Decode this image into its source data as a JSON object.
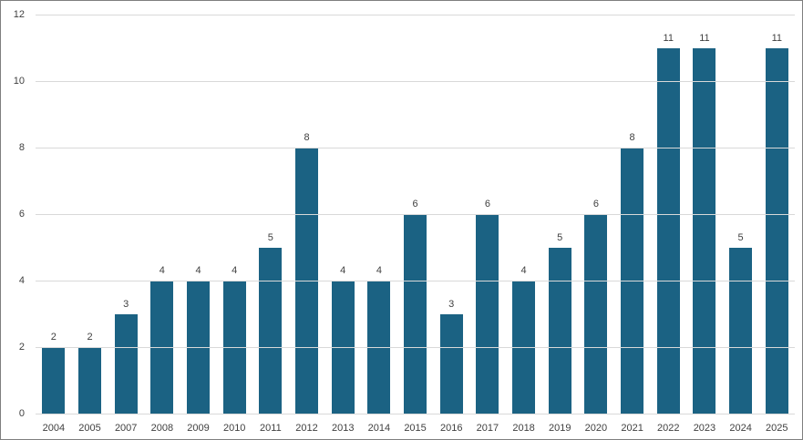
{
  "chart_data": {
    "type": "bar",
    "categories": [
      "2004",
      "2005",
      "2007",
      "2008",
      "2009",
      "2010",
      "2011",
      "2012",
      "2013",
      "2014",
      "2015",
      "2016",
      "2017",
      "2018",
      "2019",
      "2020",
      "2021",
      "2022",
      "2023",
      "2024",
      "2025"
    ],
    "values": [
      2,
      2,
      3,
      4,
      4,
      4,
      5,
      8,
      4,
      4,
      6,
      3,
      6,
      4,
      5,
      6,
      8,
      11,
      11,
      5,
      11
    ],
    "title": "",
    "xlabel": "",
    "ylabel": "",
    "ylim": [
      0,
      12
    ],
    "yticks": [
      0,
      2,
      4,
      6,
      8,
      10,
      12
    ],
    "grid": true,
    "legend": false,
    "data_labels": true,
    "colors": {
      "bar": "#1b6283",
      "gridline": "#d9d9d9",
      "tick_label": "#404040",
      "frame_border": "#7f7f7f",
      "background": "#ffffff"
    }
  }
}
